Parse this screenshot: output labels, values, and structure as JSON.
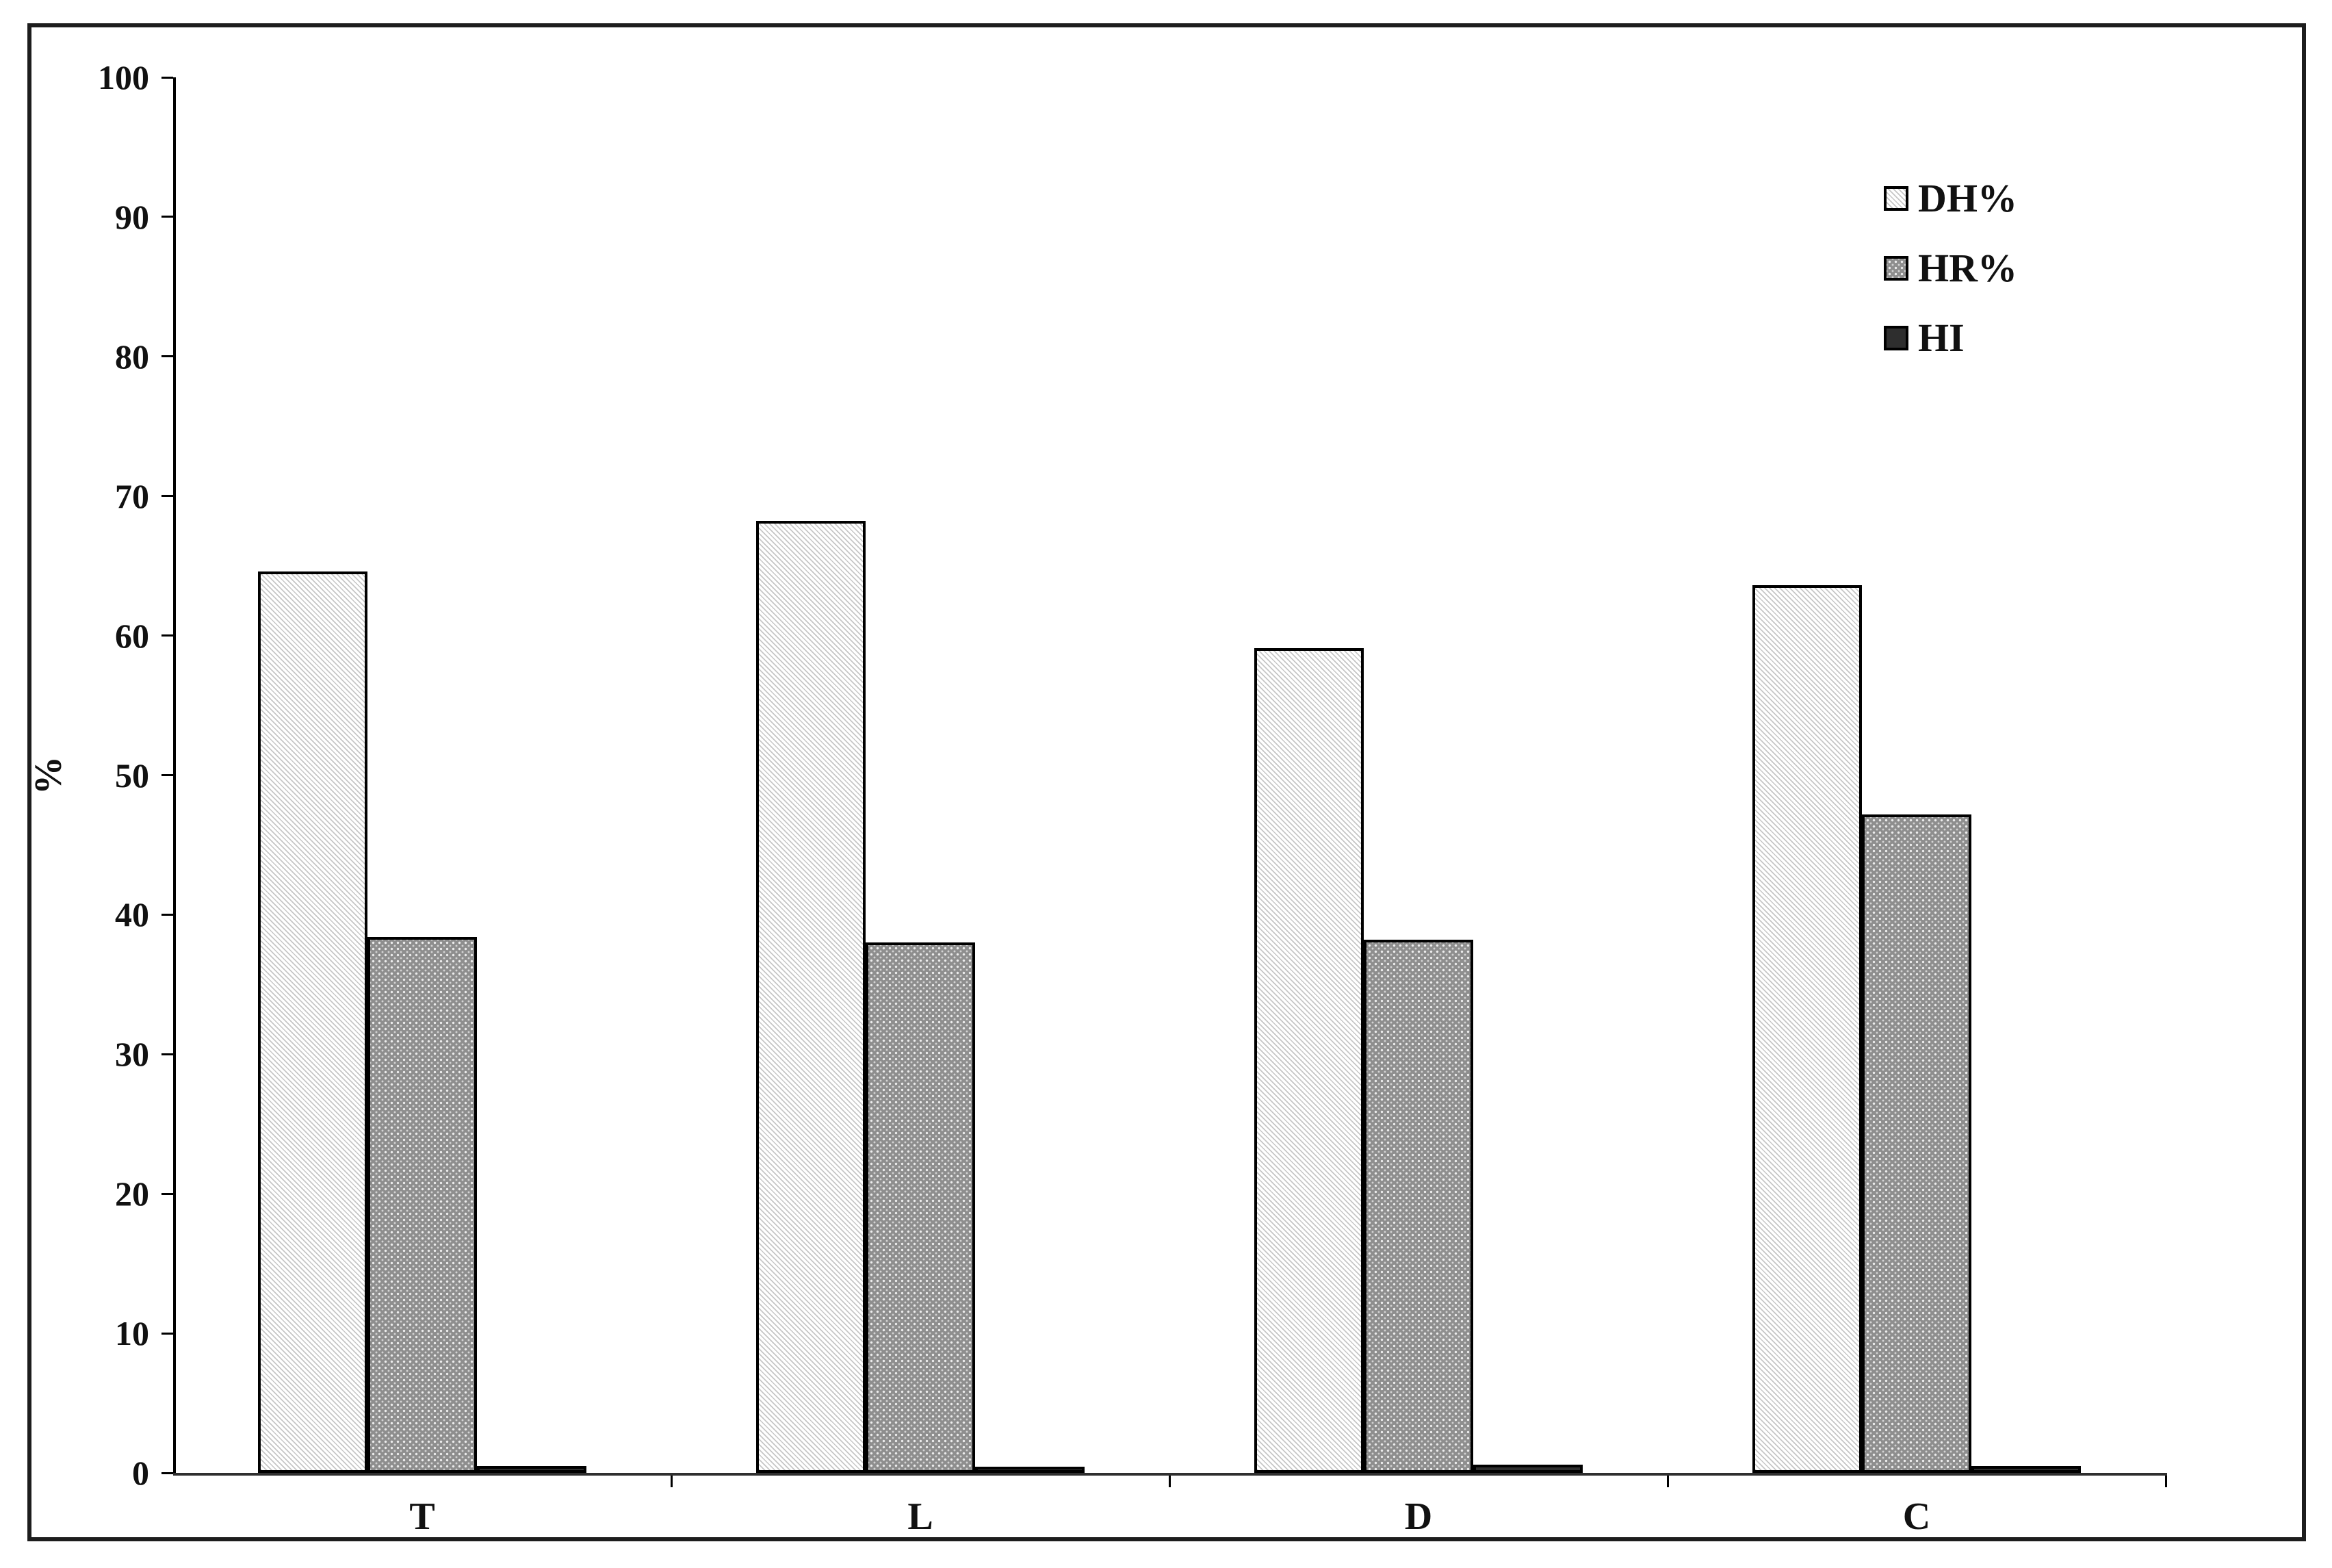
{
  "figure": {
    "ylabel": "%",
    "legend": [
      {
        "label": "DH%",
        "pattern": "diagonal-hatch"
      },
      {
        "label": "HR%",
        "pattern": "dot-grid"
      },
      {
        "label": "HI",
        "pattern": "solid-dark"
      }
    ]
  },
  "chart_data": {
    "type": "bar",
    "categories": [
      "T",
      "L",
      "D",
      "C"
    ],
    "series": [
      {
        "name": "DH%",
        "values": [
          64.6,
          68.2,
          59.1,
          63.6
        ]
      },
      {
        "name": "HR%",
        "values": [
          38.4,
          38.0,
          38.2,
          47.2
        ]
      },
      {
        "name": "HI",
        "values": [
          0.5,
          0.4,
          0.6,
          0.5
        ]
      }
    ],
    "title": "",
    "xlabel": "",
    "ylabel": "%",
    "ylim": [
      0,
      100
    ],
    "ytick_step": 10,
    "grid": false,
    "legend_position": "upper-right",
    "colors": {
      "dh_fill": "#ffffff",
      "dh_hatch": "#c6c6c6",
      "hr_fill": "#8e8e8e",
      "hr_dot": "#ececec",
      "hi_fill": "#2e2e2e",
      "axis": "#000000",
      "background": "#ffffff"
    }
  }
}
